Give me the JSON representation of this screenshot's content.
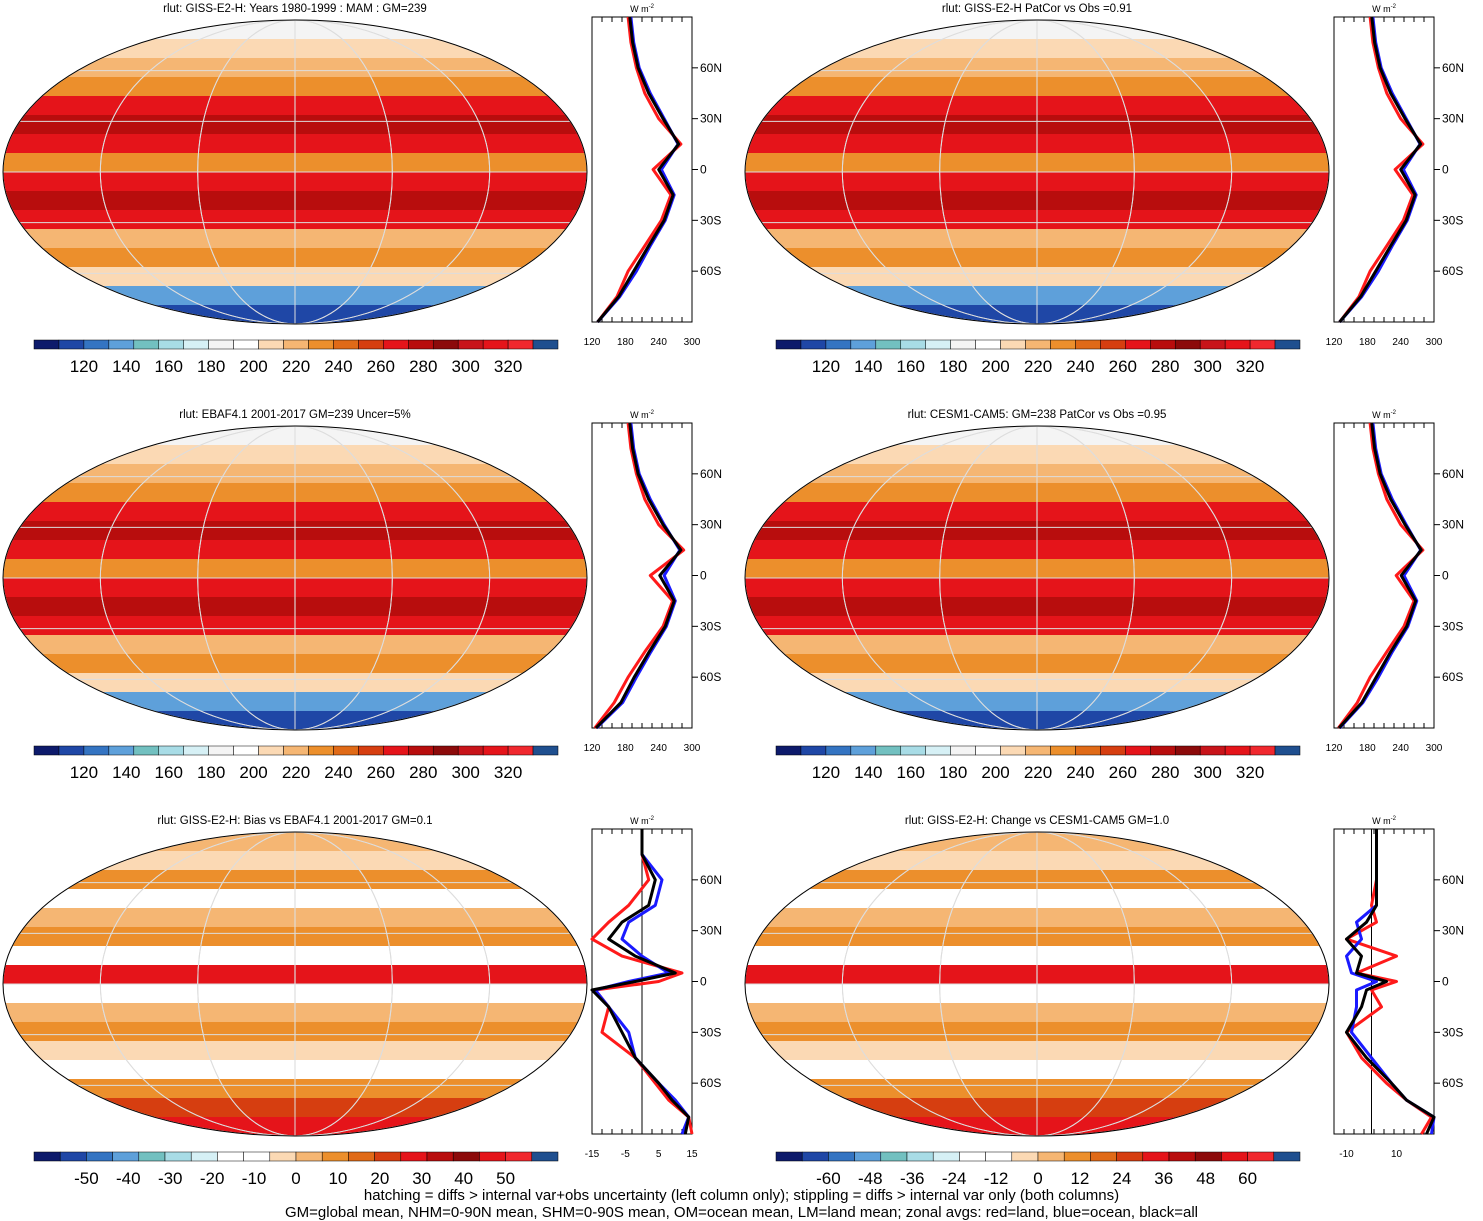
{
  "footer": {
    "line1": "hatching = diffs > internal var+obs uncertainty (left column only); stippling = diffs > internal var only (both columns)",
    "line2": "GM=global mean, NHM=0-90N mean, SHM=0-90S mean, OM=ocean mean, LM=land mean; zonal avgs: red=land, blue=ocean, black=all"
  },
  "units_label": "W m",
  "units_sup": "-2",
  "lat_labels": [
    "60N",
    "30N",
    "0",
    "30S",
    "60S"
  ],
  "colors": {
    "land": "#ff1a1a",
    "ocean": "#1a1aff",
    "all": "#000000",
    "abs_palette": [
      "#0d1a6b",
      "#1f47a6",
      "#3474c2",
      "#5ea0da",
      "#72c0c0",
      "#a8dce6",
      "#d6f0f5",
      "#f4f4f4",
      "#ffffff",
      "#fbd9b4",
      "#f5b673",
      "#ec8f2c",
      "#e06a17",
      "#d63e10",
      "#e5141a",
      "#b80d0d",
      "#8c0a0a",
      "#c8141a",
      "#e5141a",
      "#f0282e",
      "#1f4f8f"
    ],
    "diff_palette": [
      "#0d1a6b",
      "#1f47a6",
      "#3474c2",
      "#5ea0da",
      "#72c0c0",
      "#a8dce6",
      "#d6f0f5",
      "#ffffff",
      "#ffffff",
      "#fbd9b4",
      "#f5b673",
      "#ec8f2c",
      "#e06a17",
      "#d63e10",
      "#e5141a",
      "#b80d0d",
      "#8c0a0a",
      "#e5141a",
      "#f0282e",
      "#1f4f8f"
    ]
  },
  "panels": [
    {
      "title": "rlut: GISS-E2-H: Years 1980-1999 : MAM : GM=239",
      "colorbar": [
        "120",
        "140",
        "160",
        "180",
        "200",
        "220",
        "240",
        "260",
        "280",
        "300",
        "320"
      ],
      "zonal_ticks": [
        "120",
        "180",
        "240",
        "300"
      ]
    },
    {
      "title": "rlut: GISS-E2-H PatCor vs Obs =0.91",
      "colorbar": [
        "120",
        "140",
        "160",
        "180",
        "200",
        "220",
        "240",
        "260",
        "280",
        "300",
        "320"
      ],
      "zonal_ticks": [
        "120",
        "180",
        "240",
        "300"
      ]
    },
    {
      "title": "rlut: EBAF4.1 2001-2017 GM=239 Uncer=5%",
      "colorbar": [
        "120",
        "140",
        "160",
        "180",
        "200",
        "220",
        "240",
        "260",
        "280",
        "300",
        "320"
      ],
      "zonal_ticks": [
        "120",
        "180",
        "240",
        "300"
      ]
    },
    {
      "title": "rlut: CESM1-CAM5: GM=238 PatCor vs Obs =0.95",
      "colorbar": [
        "120",
        "140",
        "160",
        "180",
        "200",
        "220",
        "240",
        "260",
        "280",
        "300",
        "320"
      ],
      "zonal_ticks": [
        "120",
        "180",
        "240",
        "300"
      ]
    },
    {
      "title": "rlut: GISS-E2-H: Bias vs EBAF4.1 2001-2017 GM=0.1",
      "colorbar": [
        "-50",
        "-40",
        "-30",
        "-20",
        "-10",
        "0",
        "10",
        "20",
        "30",
        "40",
        "50"
      ],
      "zonal_ticks": [
        "-15",
        "-5",
        "5",
        "15"
      ]
    },
    {
      "title": "rlut: GISS-E2-H: Change vs CESM1-CAM5 GM=1.0",
      "colorbar": [
        "-60",
        "-48",
        "-36",
        "-24",
        "-12",
        "0",
        "12",
        "24",
        "36",
        "48",
        "60"
      ],
      "zonal_ticks": [
        "-10",
        "10"
      ]
    }
  ],
  "chart_data": [
    {
      "type": "line",
      "title": "rlut: GISS-E2-H: Years 1980-1999 : MAM : GM=239",
      "xlim": [
        120,
        300
      ],
      "ylim": [
        -90,
        90
      ],
      "lat": [
        -90,
        -75,
        -60,
        -45,
        -30,
        -15,
        0,
        15,
        30,
        45,
        60,
        75,
        90
      ],
      "series": [
        {
          "name": "land",
          "values": [
            130,
            165,
            185,
            215,
            245,
            262,
            230,
            280,
            240,
            215,
            200,
            190,
            185
          ]
        },
        {
          "name": "ocean",
          "values": [
            130,
            170,
            200,
            225,
            252,
            268,
            245,
            275,
            250,
            225,
            205,
            195,
            190
          ]
        },
        {
          "name": "all",
          "values": [
            130,
            168,
            195,
            222,
            250,
            266,
            240,
            276,
            248,
            222,
            203,
            193,
            188
          ]
        }
      ]
    },
    {
      "type": "line",
      "title": "rlut: GISS-E2-H PatCor vs Obs =0.91",
      "xlim": [
        120,
        300
      ],
      "ylim": [
        -90,
        90
      ],
      "lat": [
        -90,
        -75,
        -60,
        -45,
        -30,
        -15,
        0,
        15,
        30,
        45,
        60,
        75,
        90
      ],
      "series": [
        {
          "name": "land",
          "values": [
            130,
            165,
            185,
            215,
            245,
            262,
            230,
            280,
            240,
            215,
            200,
            190,
            185
          ]
        },
        {
          "name": "ocean",
          "values": [
            130,
            170,
            200,
            225,
            252,
            268,
            245,
            275,
            250,
            225,
            205,
            195,
            190
          ]
        },
        {
          "name": "all",
          "values": [
            130,
            168,
            195,
            222,
            250,
            266,
            240,
            276,
            248,
            222,
            203,
            193,
            188
          ]
        }
      ]
    },
    {
      "type": "line",
      "title": "rlut: EBAF4.1 2001-2017 GM=239 Uncer=5%",
      "xlim": [
        120,
        300
      ],
      "ylim": [
        -90,
        90
      ],
      "lat": [
        -90,
        -75,
        -60,
        -45,
        -30,
        -15,
        0,
        15,
        30,
        45,
        60,
        75,
        90
      ],
      "series": [
        {
          "name": "land",
          "values": [
            125,
            160,
            185,
            215,
            248,
            265,
            225,
            285,
            240,
            215,
            200,
            190,
            185
          ]
        },
        {
          "name": "ocean",
          "values": [
            128,
            175,
            200,
            226,
            254,
            270,
            250,
            278,
            250,
            225,
            205,
            195,
            190
          ]
        },
        {
          "name": "all",
          "values": [
            127,
            172,
            196,
            223,
            252,
            268,
            242,
            280,
            248,
            222,
            203,
            193,
            188
          ]
        }
      ]
    },
    {
      "type": "line",
      "title": "rlut: CESM1-CAM5: GM=238 PatCor vs Obs =0.95",
      "xlim": [
        120,
        300
      ],
      "ylim": [
        -90,
        90
      ],
      "lat": [
        -90,
        -75,
        -60,
        -45,
        -30,
        -15,
        0,
        15,
        30,
        45,
        60,
        75,
        90
      ],
      "series": [
        {
          "name": "land",
          "values": [
            128,
            162,
            185,
            215,
            246,
            264,
            232,
            280,
            240,
            215,
            200,
            190,
            185
          ]
        },
        {
          "name": "ocean",
          "values": [
            130,
            172,
            200,
            225,
            253,
            269,
            246,
            276,
            250,
            225,
            205,
            195,
            190
          ]
        },
        {
          "name": "all",
          "values": [
            129,
            170,
            196,
            222,
            251,
            267,
            241,
            277,
            248,
            222,
            203,
            193,
            188
          ]
        }
      ]
    },
    {
      "type": "line",
      "title": "rlut: GISS-E2-H: Bias vs EBAF4.1 2001-2017 GM=0.1",
      "xlim": [
        -15,
        15
      ],
      "ylim": [
        -90,
        90
      ],
      "lat": [
        -90,
        -80,
        -70,
        -60,
        -45,
        -30,
        -15,
        -5,
        0,
        5,
        15,
        25,
        35,
        45,
        60,
        75,
        90
      ],
      "series": [
        {
          "name": "land",
          "values": [
            15,
            14,
            8,
            4,
            -2,
            -12,
            -10,
            -14,
            5,
            12,
            -6,
            -16,
            -10,
            -4,
            2,
            0,
            0
          ]
        },
        {
          "name": "ocean",
          "values": [
            12,
            14,
            10,
            5,
            -2,
            -4,
            -10,
            -14,
            -4,
            8,
            0,
            -6,
            -4,
            4,
            6,
            0,
            0
          ]
        },
        {
          "name": "all",
          "values": [
            13,
            14,
            9,
            5,
            -2,
            -6,
            -10,
            -16,
            -2,
            10,
            -2,
            -10,
            -6,
            2,
            4,
            0,
            0
          ]
        }
      ]
    },
    {
      "type": "line",
      "title": "rlut: GISS-E2-H: Change vs CESM1-CAM5 GM=1.0",
      "xlim": [
        -15,
        25
      ],
      "ylim": [
        -90,
        90
      ],
      "lat": [
        -90,
        -80,
        -70,
        -60,
        -45,
        -30,
        -15,
        -5,
        0,
        5,
        15,
        25,
        35,
        45,
        60,
        75,
        90
      ],
      "series": [
        {
          "name": "land",
          "values": [
            20,
            24,
            14,
            6,
            -4,
            -10,
            4,
            0,
            10,
            -6,
            10,
            -10,
            2,
            0,
            2,
            2,
            2
          ]
        },
        {
          "name": "ocean",
          "values": [
            24,
            30,
            14,
            8,
            0,
            -8,
            -6,
            -6,
            2,
            -8,
            -10,
            -4,
            -6,
            2,
            2,
            2,
            2
          ]
        },
        {
          "name": "all",
          "values": [
            22,
            26,
            14,
            8,
            -2,
            -10,
            -4,
            -2,
            6,
            -6,
            -4,
            -10,
            -2,
            2,
            2,
            2,
            2
          ]
        }
      ]
    }
  ]
}
